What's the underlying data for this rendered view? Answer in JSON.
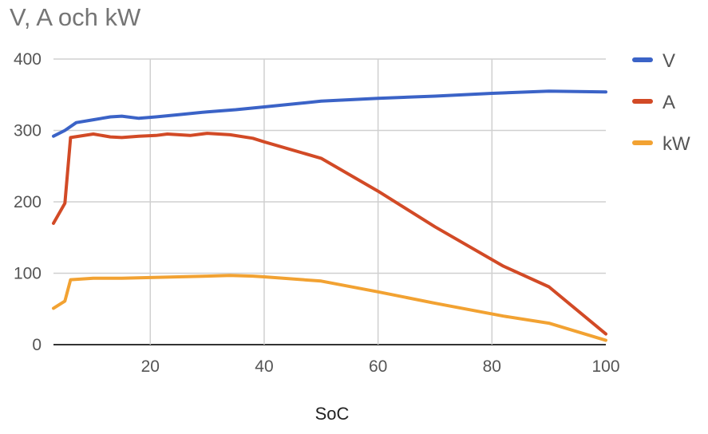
{
  "chart_data": {
    "type": "line",
    "title": "V, A och kW",
    "xlabel": "SoC",
    "ylabel": "",
    "xlim": [
      3,
      100
    ],
    "ylim": [
      0,
      400
    ],
    "xticks": [
      20,
      40,
      60,
      80,
      100
    ],
    "yticks": [
      0,
      100,
      200,
      300,
      400
    ],
    "grid": true,
    "legend_position": "right",
    "series": [
      {
        "name": "V",
        "color": "#3b63c7",
        "points": [
          [
            3,
            292
          ],
          [
            5,
            300
          ],
          [
            7,
            311
          ],
          [
            10,
            315
          ],
          [
            13,
            319
          ],
          [
            15,
            320
          ],
          [
            18,
            317
          ],
          [
            21,
            319
          ],
          [
            25,
            322
          ],
          [
            30,
            326
          ],
          [
            35,
            329
          ],
          [
            40,
            333
          ],
          [
            50,
            341
          ],
          [
            60,
            345
          ],
          [
            70,
            348
          ],
          [
            80,
            352
          ],
          [
            90,
            355
          ],
          [
            100,
            354
          ]
        ]
      },
      {
        "name": "A",
        "color": "#d24a26",
        "points": [
          [
            3,
            170
          ],
          [
            5,
            198
          ],
          [
            6,
            290
          ],
          [
            10,
            295
          ],
          [
            13,
            291
          ],
          [
            15,
            290
          ],
          [
            18,
            292
          ],
          [
            21,
            293
          ],
          [
            23,
            295
          ],
          [
            27,
            293
          ],
          [
            30,
            296
          ],
          [
            34,
            294
          ],
          [
            38,
            289
          ],
          [
            40,
            284
          ],
          [
            50,
            261
          ],
          [
            60,
            215
          ],
          [
            70,
            165
          ],
          [
            82,
            110
          ],
          [
            90,
            81
          ],
          [
            100,
            15
          ]
        ]
      },
      {
        "name": "kW",
        "color": "#f2a232",
        "points": [
          [
            3,
            51
          ],
          [
            5,
            61
          ],
          [
            6,
            91
          ],
          [
            10,
            93
          ],
          [
            15,
            93
          ],
          [
            20,
            94
          ],
          [
            25,
            95
          ],
          [
            30,
            96
          ],
          [
            34,
            97
          ],
          [
            38,
            96
          ],
          [
            40,
            95
          ],
          [
            50,
            89
          ],
          [
            60,
            74
          ],
          [
            70,
            58
          ],
          [
            82,
            40
          ],
          [
            90,
            30
          ],
          [
            100,
            6
          ]
        ]
      }
    ]
  }
}
